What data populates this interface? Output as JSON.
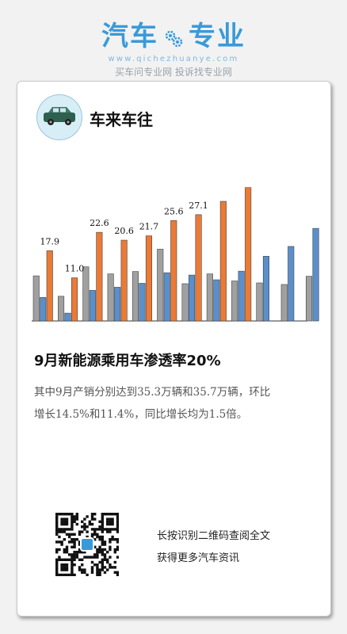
{
  "brand": {
    "name_left": "汽车",
    "name_right": "专业",
    "url": "www.qichezhuanye.com",
    "tagline": "买车问专业网 投诉找专业网",
    "color": "#3a9ad9"
  },
  "article": {
    "author": "车来车往",
    "headline": "9月新能源乘用车渗透率20%",
    "body": "其中9月产销分别达到35.3万辆和35.7万辆，环比增长14.5%和11.4%，同比增长均为1.5倍。",
    "qr_text_line1": "长按识别二维码查阅全文",
    "qr_text_line2": "获得更多汽车资讯"
  },
  "chart_data": {
    "type": "bar",
    "series": [
      {
        "name": "",
        "color": "#a0a0a0",
        "values": [
          11.5,
          6.3,
          13.8,
          12.0,
          12.6,
          18.3,
          9.5,
          12.0,
          10.2,
          9.7,
          9.3,
          11.4
        ]
      },
      {
        "name": "",
        "color": "#5b8fcb",
        "values": [
          6.0,
          2.0,
          7.8,
          8.6,
          9.6,
          12.3,
          11.7,
          10.5,
          12.7,
          16.5,
          19.0,
          23.6
        ]
      },
      {
        "name": "",
        "color": "#ea7a36",
        "values": [
          17.9,
          11.0,
          22.6,
          20.6,
          21.7,
          25.6,
          27.1,
          30.5,
          34.0,
          null,
          null,
          null
        ]
      }
    ],
    "data_labels": [
      "17.9",
      "11.0",
      "22.6",
      "20.6",
      "21.7",
      "25.6",
      "27.1"
    ],
    "ylim": [
      0,
      40
    ]
  }
}
